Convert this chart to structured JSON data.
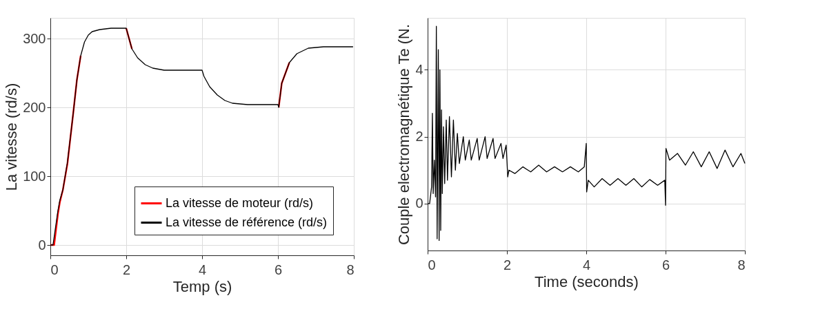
{
  "chart_data": [
    {
      "type": "line",
      "xlabel": "Temp (s)",
      "ylabel": "La vitesse (rd/s)",
      "xlim": [
        0,
        8
      ],
      "ylim": [
        -15,
        330
      ],
      "xticks": [
        0,
        2,
        4,
        6,
        8
      ],
      "yticks": [
        0,
        100,
        200,
        300
      ],
      "grid": true,
      "legend": "bottom right",
      "series": [
        {
          "name": "La vitesse de moteur (rd/s)",
          "color": "#ff0000",
          "x": [
            0,
            0.1,
            0.2,
            0.25,
            0.33,
            0.45,
            0.6,
            0.7,
            0.8,
            0.9,
            1.0,
            1.1,
            1.3,
            1.6,
            2.0,
            2.05,
            2.15,
            2.3,
            2.5,
            2.7,
            3.0,
            3.5,
            4.0,
            4.05,
            4.2,
            4.4,
            4.6,
            4.8,
            5.2,
            6.0,
            6.02,
            6.1,
            6.3
          ],
          "values": [
            0,
            0,
            45,
            62,
            80,
            118,
            190,
            240,
            275,
            null,
            null,
            null,
            null,
            null,
            315,
            305,
            285,
            null,
            null,
            null,
            null,
            null,
            null,
            null,
            null,
            null,
            null,
            null,
            null,
            null,
            200,
            235,
            265
          ]
        },
        {
          "name": "La vitesse de référence (rd/s)",
          "color": "#000000",
          "x": [
            0,
            0.07,
            0.2,
            0.25,
            0.33,
            0.45,
            0.6,
            0.7,
            0.8,
            0.9,
            1.0,
            1.1,
            1.3,
            1.6,
            2.0,
            2.05,
            2.15,
            2.3,
            2.5,
            2.7,
            3.0,
            3.5,
            4.0,
            4.05,
            4.2,
            4.4,
            4.6,
            4.8,
            5.2,
            6.0,
            6.02,
            6.1,
            6.3,
            6.5,
            6.8,
            7.2,
            7.98
          ],
          "values": [
            0,
            0,
            50,
            65,
            80,
            120,
            190,
            240,
            275,
            295,
            305,
            310,
            313,
            315,
            315,
            305,
            285,
            272,
            262,
            257,
            254,
            254,
            254,
            245,
            230,
            218,
            210,
            206,
            204,
            204,
            200,
            235,
            265,
            278,
            286,
            288,
            288
          ]
        }
      ]
    },
    {
      "type": "line",
      "xlabel": "Time (seconds)",
      "ylabel": "Couple electromagnétique  Te (N.",
      "xlim": [
        0,
        8
      ],
      "ylim": [
        -1.4,
        5.55
      ],
      "xticks": [
        0,
        2,
        4,
        6,
        8
      ],
      "yticks": [
        0,
        2,
        4
      ],
      "grid": true,
      "series": [
        {
          "color": "#000000",
          "x": [
            0,
            0.05,
            0.1,
            0.12,
            0.14,
            0.17,
            0.2,
            0.22,
            0.24,
            0.27,
            0.29,
            0.31,
            0.33,
            0.35,
            0.37,
            0.4,
            0.43,
            0.47,
            0.5,
            0.55,
            0.6,
            0.65,
            0.7,
            0.75,
            0.8,
            0.9,
            0.95,
            1.05,
            1.1,
            1.25,
            1.3,
            1.45,
            1.5,
            1.65,
            1.7,
            1.85,
            1.9,
            1.98,
            2.0,
            2.02,
            2.05,
            2.2,
            2.4,
            2.6,
            2.8,
            3.0,
            3.2,
            3.4,
            3.6,
            3.8,
            3.95,
            4.0,
            4.01,
            4.05,
            4.2,
            4.4,
            4.6,
            4.8,
            5.0,
            5.2,
            5.4,
            5.6,
            5.8,
            5.98,
            6.0,
            6.01,
            6.1,
            6.3,
            6.5,
            6.7,
            6.9,
            7.1,
            7.3,
            7.5,
            7.7,
            7.9,
            8.0
          ],
          "values": [
            0,
            0,
            0.5,
            2.7,
            0.3,
            1.3,
            0.2,
            5.3,
            -1.05,
            4.6,
            -1.1,
            4.0,
            -0.8,
            2.8,
            0.3,
            2.3,
            0.6,
            2.5,
            0.7,
            2.6,
            0.8,
            2.5,
            1.0,
            2.1,
            1.2,
            2.0,
            1.3,
            1.9,
            1.3,
            1.95,
            1.3,
            2.0,
            1.35,
            1.95,
            1.35,
            1.8,
            1.35,
            1.75,
            1.3,
            0.8,
            1.0,
            0.9,
            1.1,
            0.95,
            1.15,
            0.95,
            1.1,
            0.95,
            1.1,
            0.95,
            1.1,
            1.8,
            0.35,
            0.7,
            0.5,
            0.75,
            0.55,
            0.75,
            0.55,
            0.75,
            0.5,
            0.72,
            0.55,
            0.7,
            -0.05,
            1.65,
            1.3,
            1.5,
            1.15,
            1.55,
            1.1,
            1.55,
            1.05,
            1.6,
            1.1,
            1.5,
            1.2
          ]
        }
      ]
    }
  ]
}
